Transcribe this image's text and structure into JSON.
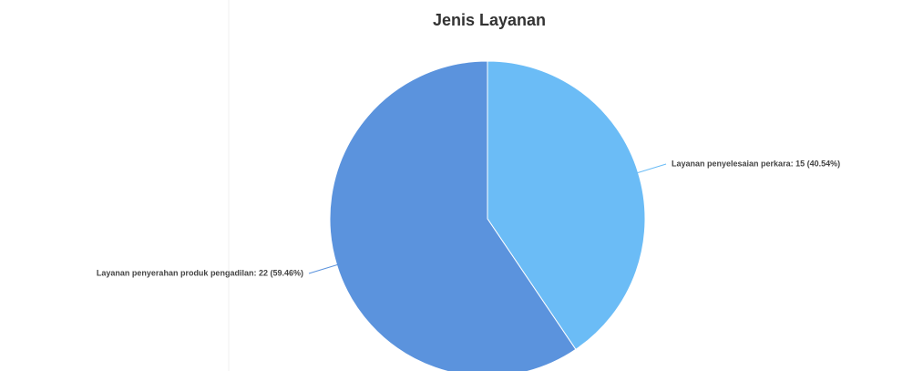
{
  "chart_data": {
    "type": "pie",
    "title": "Jenis Layanan",
    "values": [
      15,
      22
    ],
    "value_labels": [
      "Layanan penyelesaian perkara: 15 (40.54%)",
      "Layanan penyerahan produk pengadilan: 22 (59.46%)"
    ],
    "colors": [
      "#6bbcf6",
      "#5b93dd"
    ]
  }
}
